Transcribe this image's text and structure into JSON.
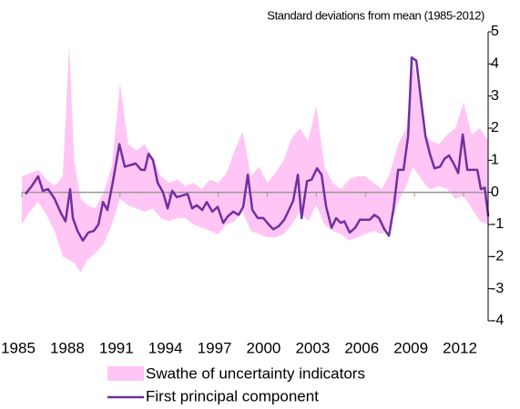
{
  "chart_data": {
    "type": "line",
    "y_axis_title": "Standard deviations from mean (1985-2012)",
    "xlim": [
      1985,
      2013.5
    ],
    "xticks": [
      1985,
      1988,
      1991,
      1994,
      1997,
      2000,
      2003,
      2006,
      2009,
      2012
    ],
    "ylim": [
      -4,
      5
    ],
    "yticks": [
      5,
      4,
      3,
      2,
      1,
      0,
      -1,
      -2,
      -3,
      -4
    ],
    "series": [
      {
        "name": "Swathe of uncertainty indicators",
        "color": "#ffc6f5",
        "x": [
          1985.0,
          1985.5,
          1986.0,
          1986.5,
          1987.0,
          1987.5,
          1987.9,
          1988.2,
          1988.6,
          1989.0,
          1989.5,
          1990.0,
          1990.5,
          1991.0,
          1991.5,
          1992.0,
          1992.5,
          1993.0,
          1993.5,
          1994.0,
          1994.5,
          1995.0,
          1995.5,
          1996.0,
          1996.5,
          1997.0,
          1997.5,
          1998.0,
          1998.5,
          1999.0,
          1999.5,
          2000.0,
          2000.5,
          2001.0,
          2001.5,
          2002.0,
          2002.5,
          2003.0,
          2003.5,
          2004.0,
          2004.5,
          2005.0,
          2005.5,
          2006.0,
          2006.5,
          2007.0,
          2007.5,
          2008.0,
          2008.5,
          2008.9,
          2009.3,
          2009.7,
          2010.0,
          2010.5,
          2011.0,
          2011.5,
          2012.0,
          2012.5,
          2013.0,
          2013.5
        ],
        "lower": [
          -1.0,
          -0.6,
          -0.3,
          -0.7,
          -1.2,
          -2.0,
          -2.1,
          -2.2,
          -2.5,
          -2.1,
          -1.9,
          -1.6,
          -1.0,
          -0.2,
          -0.4,
          -0.5,
          -0.6,
          -0.5,
          -0.8,
          -0.9,
          -0.8,
          -0.8,
          -1.0,
          -1.1,
          -1.2,
          -1.3,
          -1.0,
          -0.9,
          -0.6,
          -1.2,
          -1.3,
          -1.4,
          -1.4,
          -1.3,
          -1.0,
          -0.6,
          -0.9,
          -0.4,
          -1.0,
          -1.2,
          -1.3,
          -1.5,
          -1.4,
          -1.3,
          -1.2,
          -1.3,
          -1.1,
          -0.3,
          0.2,
          0.8,
          0.5,
          0.2,
          0.1,
          0.2,
          0.1,
          -0.2,
          -0.1,
          -0.5,
          -0.9,
          -1.0
        ],
        "upper": [
          0.5,
          0.6,
          0.7,
          0.4,
          0.2,
          0.5,
          4.6,
          1.0,
          -0.2,
          -0.4,
          -0.5,
          0.0,
          0.8,
          3.4,
          1.5,
          1.3,
          1.5,
          1.1,
          0.5,
          0.3,
          0.4,
          0.2,
          0.3,
          0.1,
          0.4,
          0.3,
          0.6,
          1.3,
          1.9,
          0.5,
          0.8,
          0.3,
          0.6,
          1.0,
          1.7,
          2.0,
          1.6,
          2.7,
          0.8,
          0.3,
          0.1,
          0.4,
          0.5,
          0.5,
          0.3,
          0.1,
          0.6,
          1.5,
          2.0,
          4.2,
          3.0,
          1.8,
          1.6,
          1.5,
          1.8,
          2.0,
          2.8,
          1.8,
          2.0,
          1.6
        ]
      },
      {
        "name": "First principal component",
        "color": "#7030a0",
        "x": [
          1985.22,
          1985.61,
          1986.0,
          1986.28,
          1986.61,
          1987.0,
          1987.39,
          1987.67,
          1987.95,
          1988.12,
          1988.4,
          1988.73,
          1989.06,
          1989.4,
          1989.68,
          1989.96,
          1990.23,
          1990.57,
          1990.96,
          1991.29,
          1991.63,
          1991.96,
          1992.29,
          1992.52,
          1992.74,
          1993.02,
          1993.3,
          1993.63,
          1993.91,
          1994.19,
          1994.47,
          1994.8,
          1995.13,
          1995.41,
          1995.69,
          1996.02,
          1996.3,
          1996.64,
          1996.97,
          1997.31,
          1997.58,
          1997.92,
          1998.25,
          1998.53,
          1998.81,
          1999.09,
          1999.42,
          1999.76,
          2000.09,
          2000.37,
          2000.7,
          2001.04,
          2001.32,
          2001.59,
          2001.87,
          2002.1,
          2002.43,
          2002.71,
          2003.04,
          2003.32,
          2003.6,
          2003.93,
          2004.21,
          2004.49,
          2004.71,
          2005.04,
          2005.38,
          2005.66,
          2005.94,
          2006.27,
          2006.55,
          2006.83,
          2007.16,
          2007.44,
          2007.72,
          2008.0,
          2008.33,
          2008.61,
          2008.83,
          2009.11,
          2009.39,
          2009.67,
          2009.94,
          2010.22,
          2010.56,
          2010.84,
          2011.11,
          2011.39,
          2011.67,
          2011.95,
          2012.23,
          2012.56,
          2012.84,
          2013.06,
          2013.29,
          2013.51
        ],
        "values": [
          -0.05,
          0.2,
          0.5,
          0.05,
          0.1,
          -0.2,
          -0.65,
          -0.9,
          0.1,
          -0.8,
          -1.2,
          -1.5,
          -1.25,
          -1.2,
          -1.0,
          -0.3,
          -0.55,
          0.35,
          1.5,
          0.8,
          0.85,
          0.9,
          0.7,
          0.7,
          1.2,
          1.0,
          0.3,
          0,
          -0.5,
          0.05,
          -0.15,
          -0.1,
          -0.05,
          -0.5,
          -0.4,
          -0.55,
          -0.3,
          -0.6,
          -0.45,
          -0.95,
          -0.75,
          -0.6,
          -0.7,
          -0.45,
          0.55,
          -0.55,
          -0.8,
          -0.8,
          -1.0,
          -1.15,
          -1.05,
          -0.85,
          -0.55,
          -0.25,
          0.55,
          -0.8,
          0.35,
          0.4,
          0.75,
          0.55,
          -0.45,
          -1.1,
          -0.8,
          -0.95,
          -0.9,
          -1.25,
          -1.1,
          -0.85,
          -0.85,
          -0.85,
          -0.7,
          -0.8,
          -1.15,
          -1.35,
          -0.5,
          0.7,
          0.7,
          1.75,
          4.2,
          4.1,
          2.9,
          1.75,
          1.2,
          0.75,
          0.8,
          1.05,
          1.15,
          0.9,
          0.6,
          1.8,
          0.7,
          0.7,
          0.7,
          0.1,
          0.15,
          -0.75
        ]
      }
    ]
  }
}
